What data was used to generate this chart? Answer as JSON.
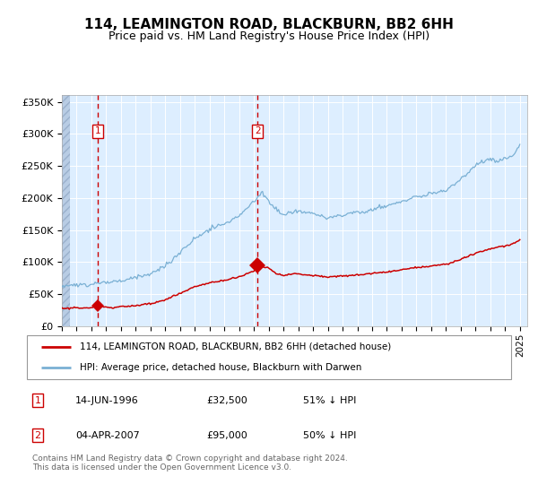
{
  "title": "114, LEAMINGTON ROAD, BLACKBURN, BB2 6HH",
  "subtitle": "Price paid vs. HM Land Registry's House Price Index (HPI)",
  "ylim": [
    0,
    360000
  ],
  "xlim_start": 1994.0,
  "xlim_end": 2025.5,
  "bg_color": "#ddeeff",
  "grid_color": "#ffffff",
  "red_color": "#cc0000",
  "blue_color": "#7ab0d4",
  "sale1_year": 1996.45,
  "sale1_price": 32500,
  "sale2_year": 2007.25,
  "sale2_price": 95000,
  "legend_line1": "114, LEAMINGTON ROAD, BLACKBURN, BB2 6HH (detached house)",
  "legend_line2": "HPI: Average price, detached house, Blackburn with Darwen",
  "footer": "Contains HM Land Registry data © Crown copyright and database right 2024.\nThis data is licensed under the Open Government Licence v3.0.",
  "ytick_labels": [
    "£0",
    "£50K",
    "£100K",
    "£150K",
    "£200K",
    "£250K",
    "£300K",
    "£350K"
  ],
  "ytick_values": [
    0,
    50000,
    100000,
    150000,
    200000,
    250000,
    300000,
    350000
  ],
  "hpi_anchors": [
    [
      1994.0,
      63000
    ],
    [
      1995.0,
      63500
    ],
    [
      1996.0,
      64000
    ],
    [
      1997.0,
      66000
    ],
    [
      1998.0,
      69000
    ],
    [
      1999.0,
      72000
    ],
    [
      2000.0,
      78000
    ],
    [
      2001.0,
      90000
    ],
    [
      2002.0,
      112000
    ],
    [
      2003.0,
      135000
    ],
    [
      2004.0,
      148000
    ],
    [
      2005.0,
      155000
    ],
    [
      2006.0,
      168000
    ],
    [
      2007.0,
      188000
    ],
    [
      2007.5,
      202000
    ],
    [
      2008.0,
      193000
    ],
    [
      2008.5,
      178000
    ],
    [
      2009.0,
      168000
    ],
    [
      2009.5,
      172000
    ],
    [
      2010.0,
      174000
    ],
    [
      2011.0,
      170000
    ],
    [
      2012.0,
      165000
    ],
    [
      2013.0,
      168000
    ],
    [
      2014.0,
      174000
    ],
    [
      2015.0,
      179000
    ],
    [
      2016.0,
      184000
    ],
    [
      2017.0,
      192000
    ],
    [
      2018.0,
      198000
    ],
    [
      2019.0,
      202000
    ],
    [
      2020.0,
      205000
    ],
    [
      2021.0,
      222000
    ],
    [
      2022.0,
      245000
    ],
    [
      2023.0,
      252000
    ],
    [
      2023.5,
      250000
    ],
    [
      2024.0,
      253000
    ],
    [
      2024.5,
      256000
    ],
    [
      2025.0,
      275000
    ]
  ],
  "red_anchors": [
    [
      1994.0,
      28000
    ],
    [
      1995.0,
      28500
    ],
    [
      1996.0,
      29500
    ],
    [
      1996.45,
      32500
    ],
    [
      1997.0,
      30000
    ],
    [
      1998.0,
      30500
    ],
    [
      1999.0,
      32000
    ],
    [
      2000.0,
      35000
    ],
    [
      2001.0,
      41000
    ],
    [
      2002.0,
      52000
    ],
    [
      2003.0,
      63000
    ],
    [
      2004.0,
      68500
    ],
    [
      2005.0,
      72000
    ],
    [
      2006.0,
      78000
    ],
    [
      2007.0,
      86000
    ],
    [
      2007.25,
      95000
    ],
    [
      2007.5,
      93000
    ],
    [
      2008.0,
      90000
    ],
    [
      2008.5,
      82000
    ],
    [
      2009.0,
      78000
    ],
    [
      2009.5,
      80000
    ],
    [
      2010.0,
      80500
    ],
    [
      2011.0,
      78500
    ],
    [
      2012.0,
      76000
    ],
    [
      2013.0,
      78000
    ],
    [
      2014.0,
      80000
    ],
    [
      2015.0,
      82000
    ],
    [
      2016.0,
      84500
    ],
    [
      2017.0,
      88000
    ],
    [
      2018.0,
      91500
    ],
    [
      2019.0,
      94000
    ],
    [
      2020.0,
      95000
    ],
    [
      2021.0,
      102000
    ],
    [
      2022.0,
      112000
    ],
    [
      2023.0,
      118000
    ],
    [
      2024.0,
      123000
    ],
    [
      2024.5,
      126000
    ],
    [
      2025.0,
      133000
    ]
  ]
}
